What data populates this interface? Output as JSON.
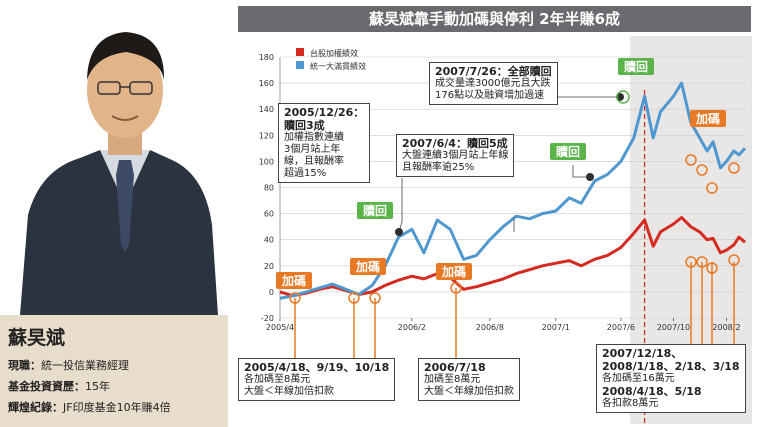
{
  "person": {
    "name": "蘇旲斌",
    "bio": [
      {
        "label": "現職：",
        "value": "統一投信業務經理"
      },
      {
        "label": "基金投資資歷：",
        "value": "15年"
      },
      {
        "label": "輝煌紀錄：",
        "value": "JF印度基金10年賺4倍"
      }
    ]
  },
  "colors": {
    "taiex": "#d42a20",
    "fund": "#4f97cf",
    "accent": "#e97a25",
    "green": "#5ab44a"
  },
  "chart_data": {
    "type": "line",
    "title": "蘇旲斌靠手動加碼與停利 2年半賺6成",
    "ylim": [
      -20,
      180
    ],
    "yticks": [
      -20,
      0,
      20,
      40,
      60,
      80,
      100,
      120,
      140,
      160,
      180
    ],
    "xlim": [
      "2005-04-01",
      "2008-03-15"
    ],
    "xticks": [
      {
        "date": "2005-04-01",
        "label": "2005/4"
      },
      {
        "date": "2006-02-01",
        "label": "2006/2"
      },
      {
        "date": "2006-08-01",
        "label": "2006/8"
      },
      {
        "date": "2007-01-01",
        "label": "2007/1"
      },
      {
        "date": "2007-06-01",
        "label": "2007/6"
      },
      {
        "date": "2007-10-01",
        "label": "2007/10"
      },
      {
        "date": "2008-02-01",
        "label": "2008/2"
      }
    ],
    "marker_line_date": "2007-07-26",
    "series": [
      {
        "name": "台股加權績效",
        "color": "#d42a20",
        "x": [
          "2005-04-01",
          "2005-05-01",
          "2005-06-01",
          "2005-07-01",
          "2005-08-01",
          "2005-09-01",
          "2005-10-01",
          "2005-11-01",
          "2005-12-01",
          "2006-01-01",
          "2006-02-01",
          "2006-03-01",
          "2006-04-01",
          "2006-05-01",
          "2006-06-01",
          "2006-07-01",
          "2006-08-01",
          "2006-09-01",
          "2006-10-01",
          "2006-11-01",
          "2006-12-01",
          "2007-01-01",
          "2007-02-01",
          "2007-03-01",
          "2007-04-01",
          "2007-05-01",
          "2007-06-01",
          "2007-07-01",
          "2007-07-26",
          "2007-08-15",
          "2007-09-01",
          "2007-10-01",
          "2007-10-20",
          "2007-11-10",
          "2007-12-01",
          "2007-12-18",
          "2008-01-01",
          "2008-01-18",
          "2008-02-01",
          "2008-02-18",
          "2008-03-01",
          "2008-03-15"
        ],
        "y": [
          0,
          -3,
          -1,
          2,
          4,
          1,
          -2,
          0,
          5,
          9,
          12,
          10,
          14,
          11,
          2,
          4,
          7,
          10,
          14,
          17,
          20,
          22,
          24,
          20,
          25,
          28,
          34,
          45,
          55,
          35,
          46,
          52,
          57,
          50,
          46,
          40,
          41,
          30,
          32,
          36,
          42,
          38
        ]
      },
      {
        "name": "統一大滿貫績效",
        "color": "#4f97cf",
        "x": [
          "2005-04-01",
          "2005-05-01",
          "2005-06-01",
          "2005-07-01",
          "2005-08-01",
          "2005-09-01",
          "2005-10-01",
          "2005-11-01",
          "2005-12-01",
          "2006-01-01",
          "2006-02-01",
          "2006-03-01",
          "2006-04-01",
          "2006-05-01",
          "2006-06-01",
          "2006-07-01",
          "2006-08-01",
          "2006-09-01",
          "2006-10-01",
          "2006-11-01",
          "2006-12-01",
          "2007-01-01",
          "2007-02-01",
          "2007-03-01",
          "2007-04-01",
          "2007-05-01",
          "2007-06-01",
          "2007-07-01",
          "2007-07-26",
          "2007-08-15",
          "2007-09-01",
          "2007-10-01",
          "2007-10-20",
          "2007-11-10",
          "2007-12-01",
          "2007-12-18",
          "2008-01-01",
          "2008-01-18",
          "2008-02-01",
          "2008-02-18",
          "2008-03-01",
          "2008-03-15"
        ],
        "y": [
          -5,
          -3,
          0,
          3,
          6,
          2,
          -2,
          5,
          20,
          42,
          48,
          30,
          55,
          48,
          25,
          28,
          40,
          50,
          58,
          56,
          60,
          62,
          72,
          68,
          85,
          90,
          100,
          118,
          150,
          118,
          138,
          150,
          160,
          130,
          118,
          108,
          115,
          95,
          100,
          108,
          105,
          110
        ]
      }
    ],
    "legend": "top-left",
    "callouts": [
      {
        "id": "c1",
        "title": "2005/12/26：",
        "lines": [
          "贖回3成",
          "加權指數連續",
          "3個月站上年",
          "線，且報酬率",
          "超過15%"
        ]
      },
      {
        "id": "c2",
        "title": "2007/6/4：贖回5成",
        "lines": [
          "大盤連續3個月站上年線",
          "且報酬率逾25%"
        ]
      },
      {
        "id": "c3",
        "title": "2007/7/26：全部贖回",
        "lines": [
          "成交量達3000億元且大跌",
          "176點以及融資增加過速"
        ]
      },
      {
        "id": "c4",
        "title": "2005/4/18、9/19、10/18",
        "lines": [
          "各加碼至8萬元",
          "大盤＜年線加倍扣款"
        ]
      },
      {
        "id": "c5",
        "title": "2006/7/18",
        "lines": [
          "加碼至8萬元",
          "大盤＜年線加倍扣款"
        ]
      },
      {
        "id": "c6",
        "title": "2007/12/18、",
        "lines": [
          "2008/1/18、2/18、3/18",
          "各加碼至16萬元",
          "2008/4/18、5/18",
          "各扣款8萬元"
        ]
      }
    ],
    "tags": {
      "redeem": "贖回",
      "add": "加碼"
    }
  }
}
